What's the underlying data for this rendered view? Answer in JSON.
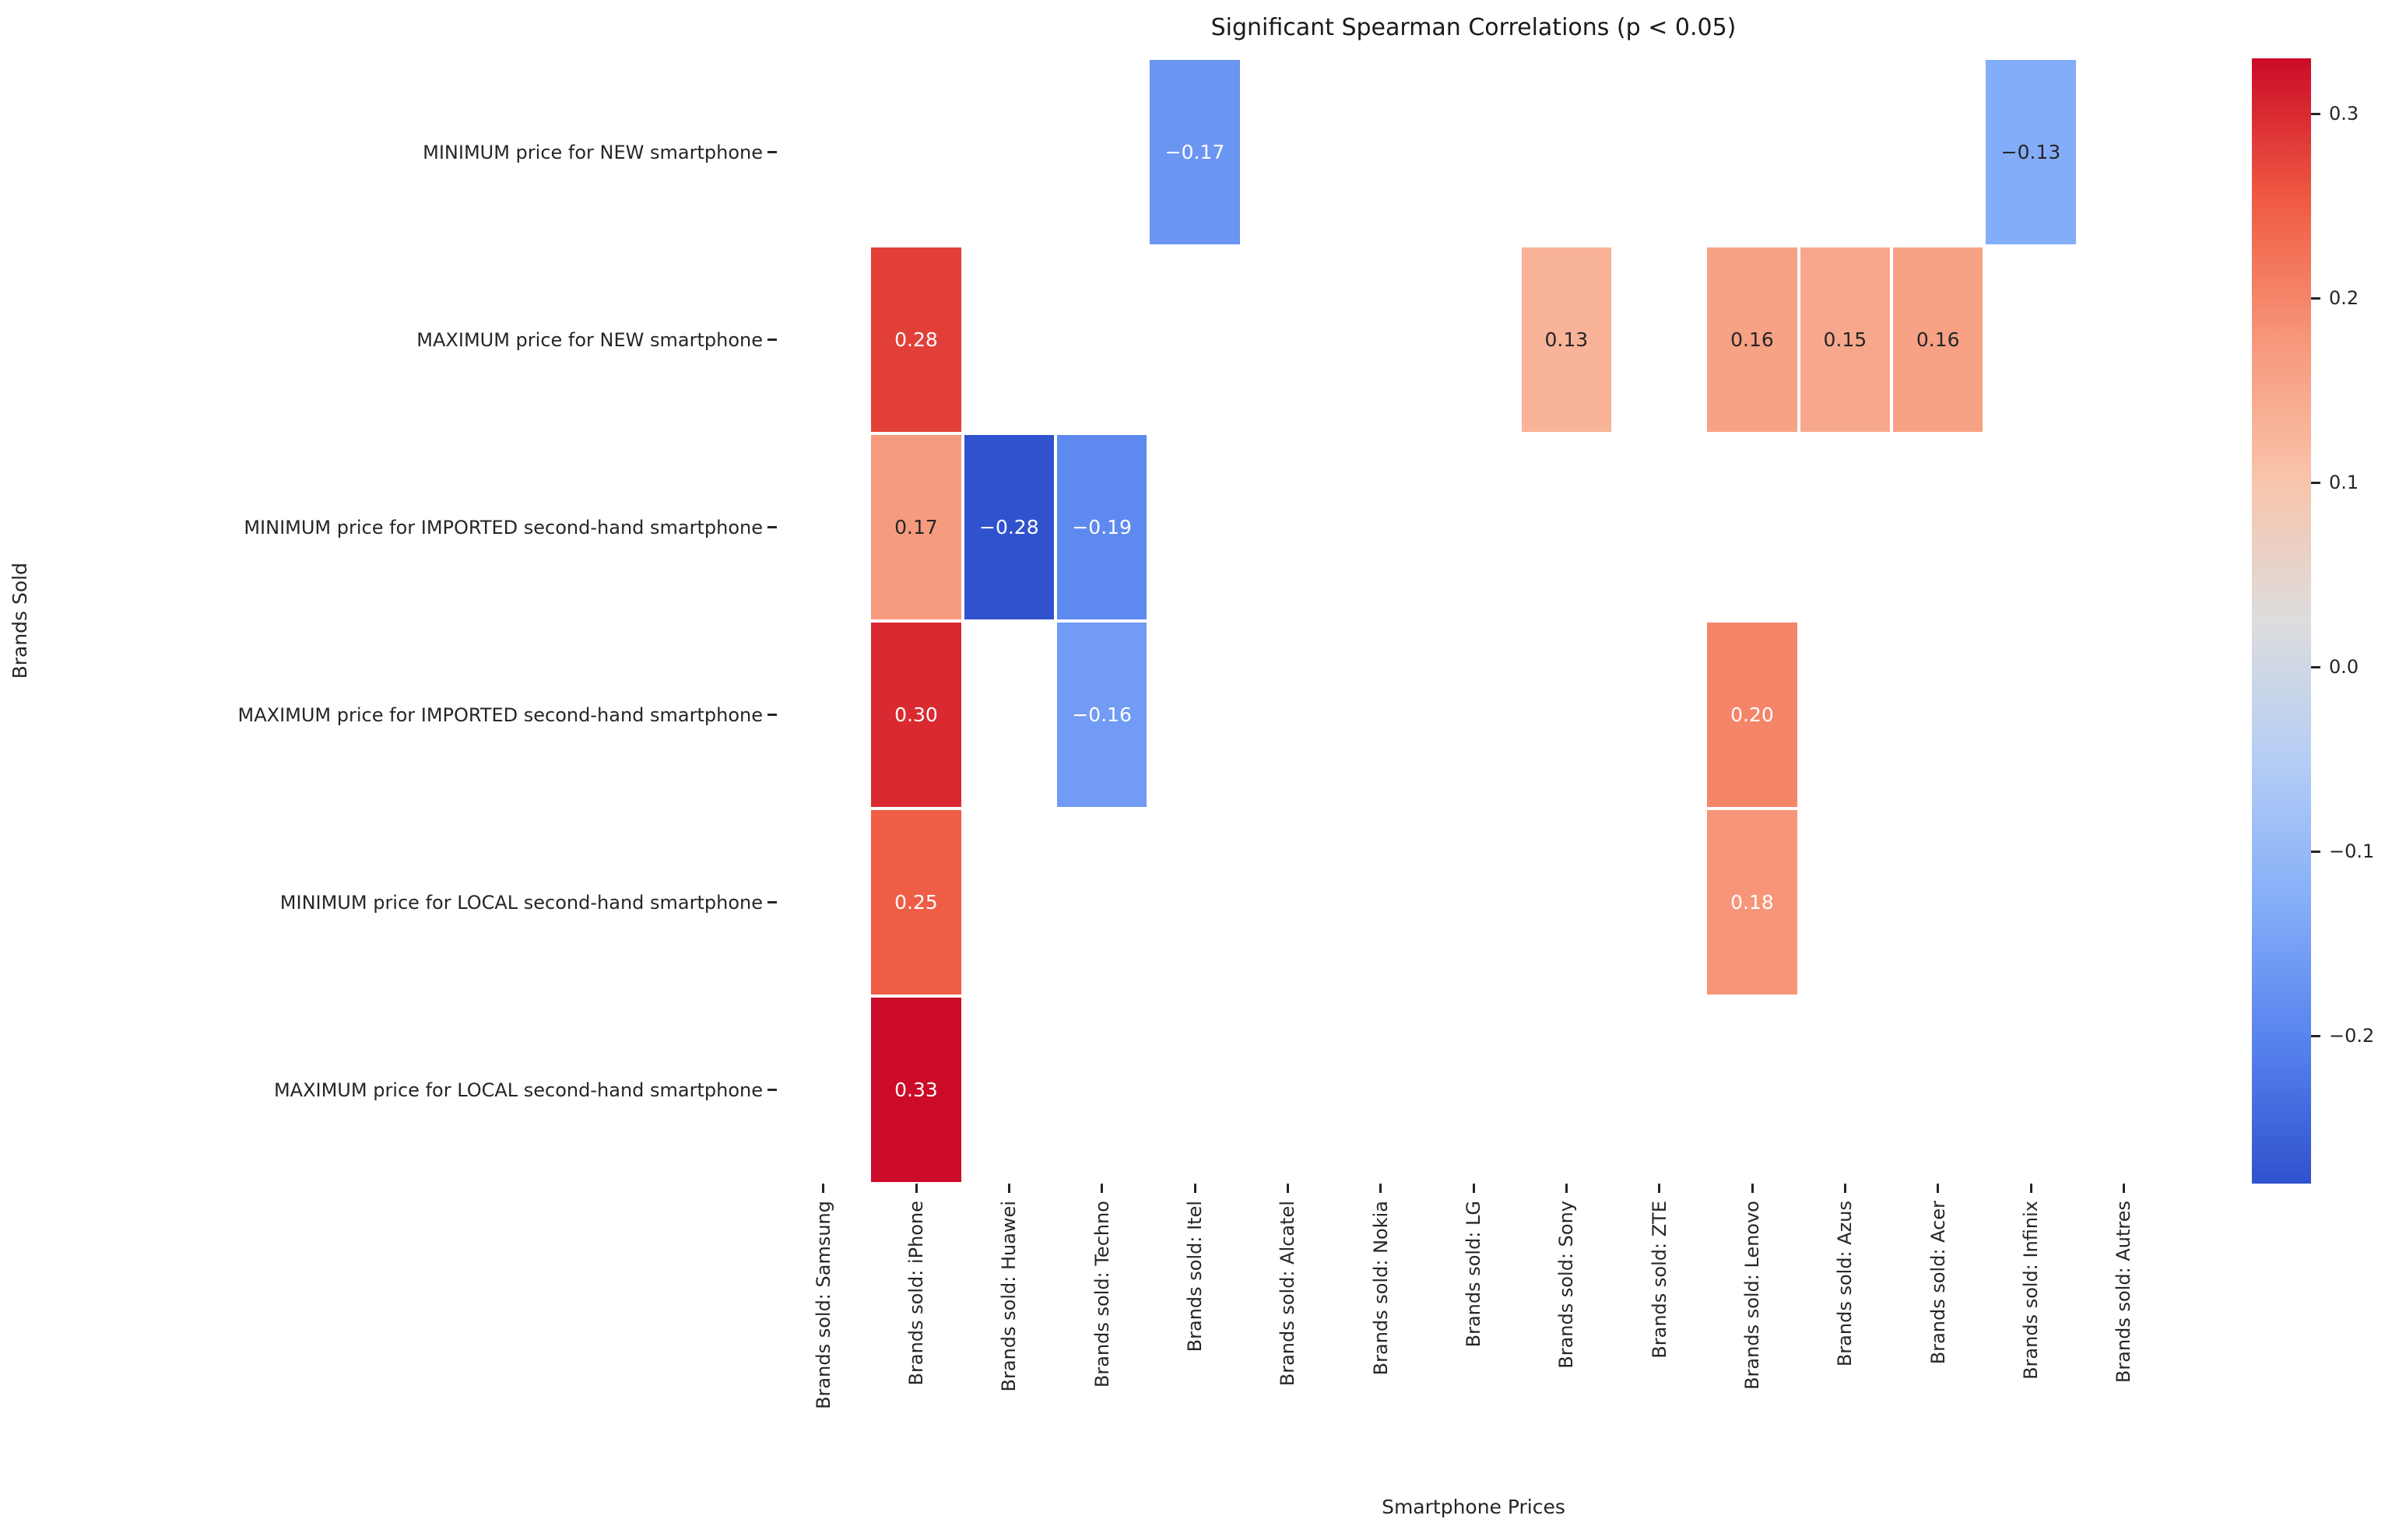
{
  "title": "Significant Spearman Correlations (p < 0.05)",
  "colors": {
    "background": "#ffffff",
    "dark_annotation_text": "#262626",
    "light_annotation_text": "#ffffff",
    "tick_color": "#262626"
  },
  "chart_data": {
    "type": "heatmap",
    "title": "Significant Spearman Correlations (p < 0.05)",
    "xlabel": "Smartphone Prices",
    "ylabel": "Brands Sold",
    "grid": false,
    "legend_position": "colorbar-right",
    "columns": [
      "Brands sold: Samsung",
      "Brands sold: iPhone",
      "Brands sold: Huawei",
      "Brands sold: Techno",
      "Brands sold: Itel",
      "Brands sold: Alcatel",
      "Brands sold: Nokia",
      "Brands sold: LG",
      "Brands sold: Sony",
      "Brands sold: ZTE",
      "Brands sold: Lenovo",
      "Brands sold: Azus",
      "Brands sold: Acer",
      "Brands sold: Infinix",
      "Brands sold: Autres"
    ],
    "rows": [
      "MINIMUM price for NEW smartphone",
      "MAXIMUM price for NEW smartphone",
      "MINIMUM price for IMPORTED second-hand smartphone",
      "MAXIMUM price for IMPORTED second-hand smartphone",
      "MINIMUM price for LOCAL second-hand smartphone",
      "MAXIMUM price for LOCAL second-hand smartphone"
    ],
    "cells": [
      {
        "row": 0,
        "col": 4,
        "value": -0.17,
        "label": "−0.17",
        "dark_text": false
      },
      {
        "row": 0,
        "col": 13,
        "value": -0.13,
        "label": "−0.13",
        "dark_text": true
      },
      {
        "row": 1,
        "col": 1,
        "value": 0.28,
        "label": "0.28",
        "dark_text": false
      },
      {
        "row": 1,
        "col": 8,
        "value": 0.13,
        "label": "0.13",
        "dark_text": true
      },
      {
        "row": 1,
        "col": 10,
        "value": 0.16,
        "label": "0.16",
        "dark_text": true
      },
      {
        "row": 1,
        "col": 11,
        "value": 0.15,
        "label": "0.15",
        "dark_text": true
      },
      {
        "row": 1,
        "col": 12,
        "value": 0.16,
        "label": "0.16",
        "dark_text": true
      },
      {
        "row": 2,
        "col": 1,
        "value": 0.17,
        "label": "0.17",
        "dark_text": true
      },
      {
        "row": 2,
        "col": 2,
        "value": -0.28,
        "label": "−0.28",
        "dark_text": false
      },
      {
        "row": 2,
        "col": 3,
        "value": -0.19,
        "label": "−0.19",
        "dark_text": false
      },
      {
        "row": 3,
        "col": 1,
        "value": 0.3,
        "label": "0.30",
        "dark_text": false
      },
      {
        "row": 3,
        "col": 3,
        "value": -0.16,
        "label": "−0.16",
        "dark_text": false
      },
      {
        "row": 3,
        "col": 10,
        "value": 0.2,
        "label": "0.20",
        "dark_text": false
      },
      {
        "row": 4,
        "col": 1,
        "value": 0.25,
        "label": "0.25",
        "dark_text": false
      },
      {
        "row": 4,
        "col": 10,
        "value": 0.18,
        "label": "0.18",
        "dark_text": false
      },
      {
        "row": 5,
        "col": 1,
        "value": 0.33,
        "label": "0.33",
        "dark_text": false
      }
    ],
    "colorbar": {
      "vmin": -0.28,
      "vmax": 0.33,
      "ticks": [
        0.3,
        0.2,
        0.1,
        0.0,
        -0.1,
        -0.2
      ],
      "tick_labels": [
        "0.3",
        "0.2",
        "0.1",
        "0.0",
        "−0.1",
        "−0.2"
      ]
    },
    "colormap": {
      "name": "coolwarm",
      "anchors": [
        [
          0.0,
          "#3052cd"
        ],
        [
          0.125,
          "#5682ee"
        ],
        [
          0.25,
          "#85aef8"
        ],
        [
          0.375,
          "#b4cdf5"
        ],
        [
          0.5,
          "#dddddd"
        ],
        [
          0.625,
          "#f8c4ab"
        ],
        [
          0.75,
          "#f7977a"
        ],
        [
          0.875,
          "#ef5a42"
        ],
        [
          1.0,
          "#cb0b28"
        ]
      ]
    }
  }
}
